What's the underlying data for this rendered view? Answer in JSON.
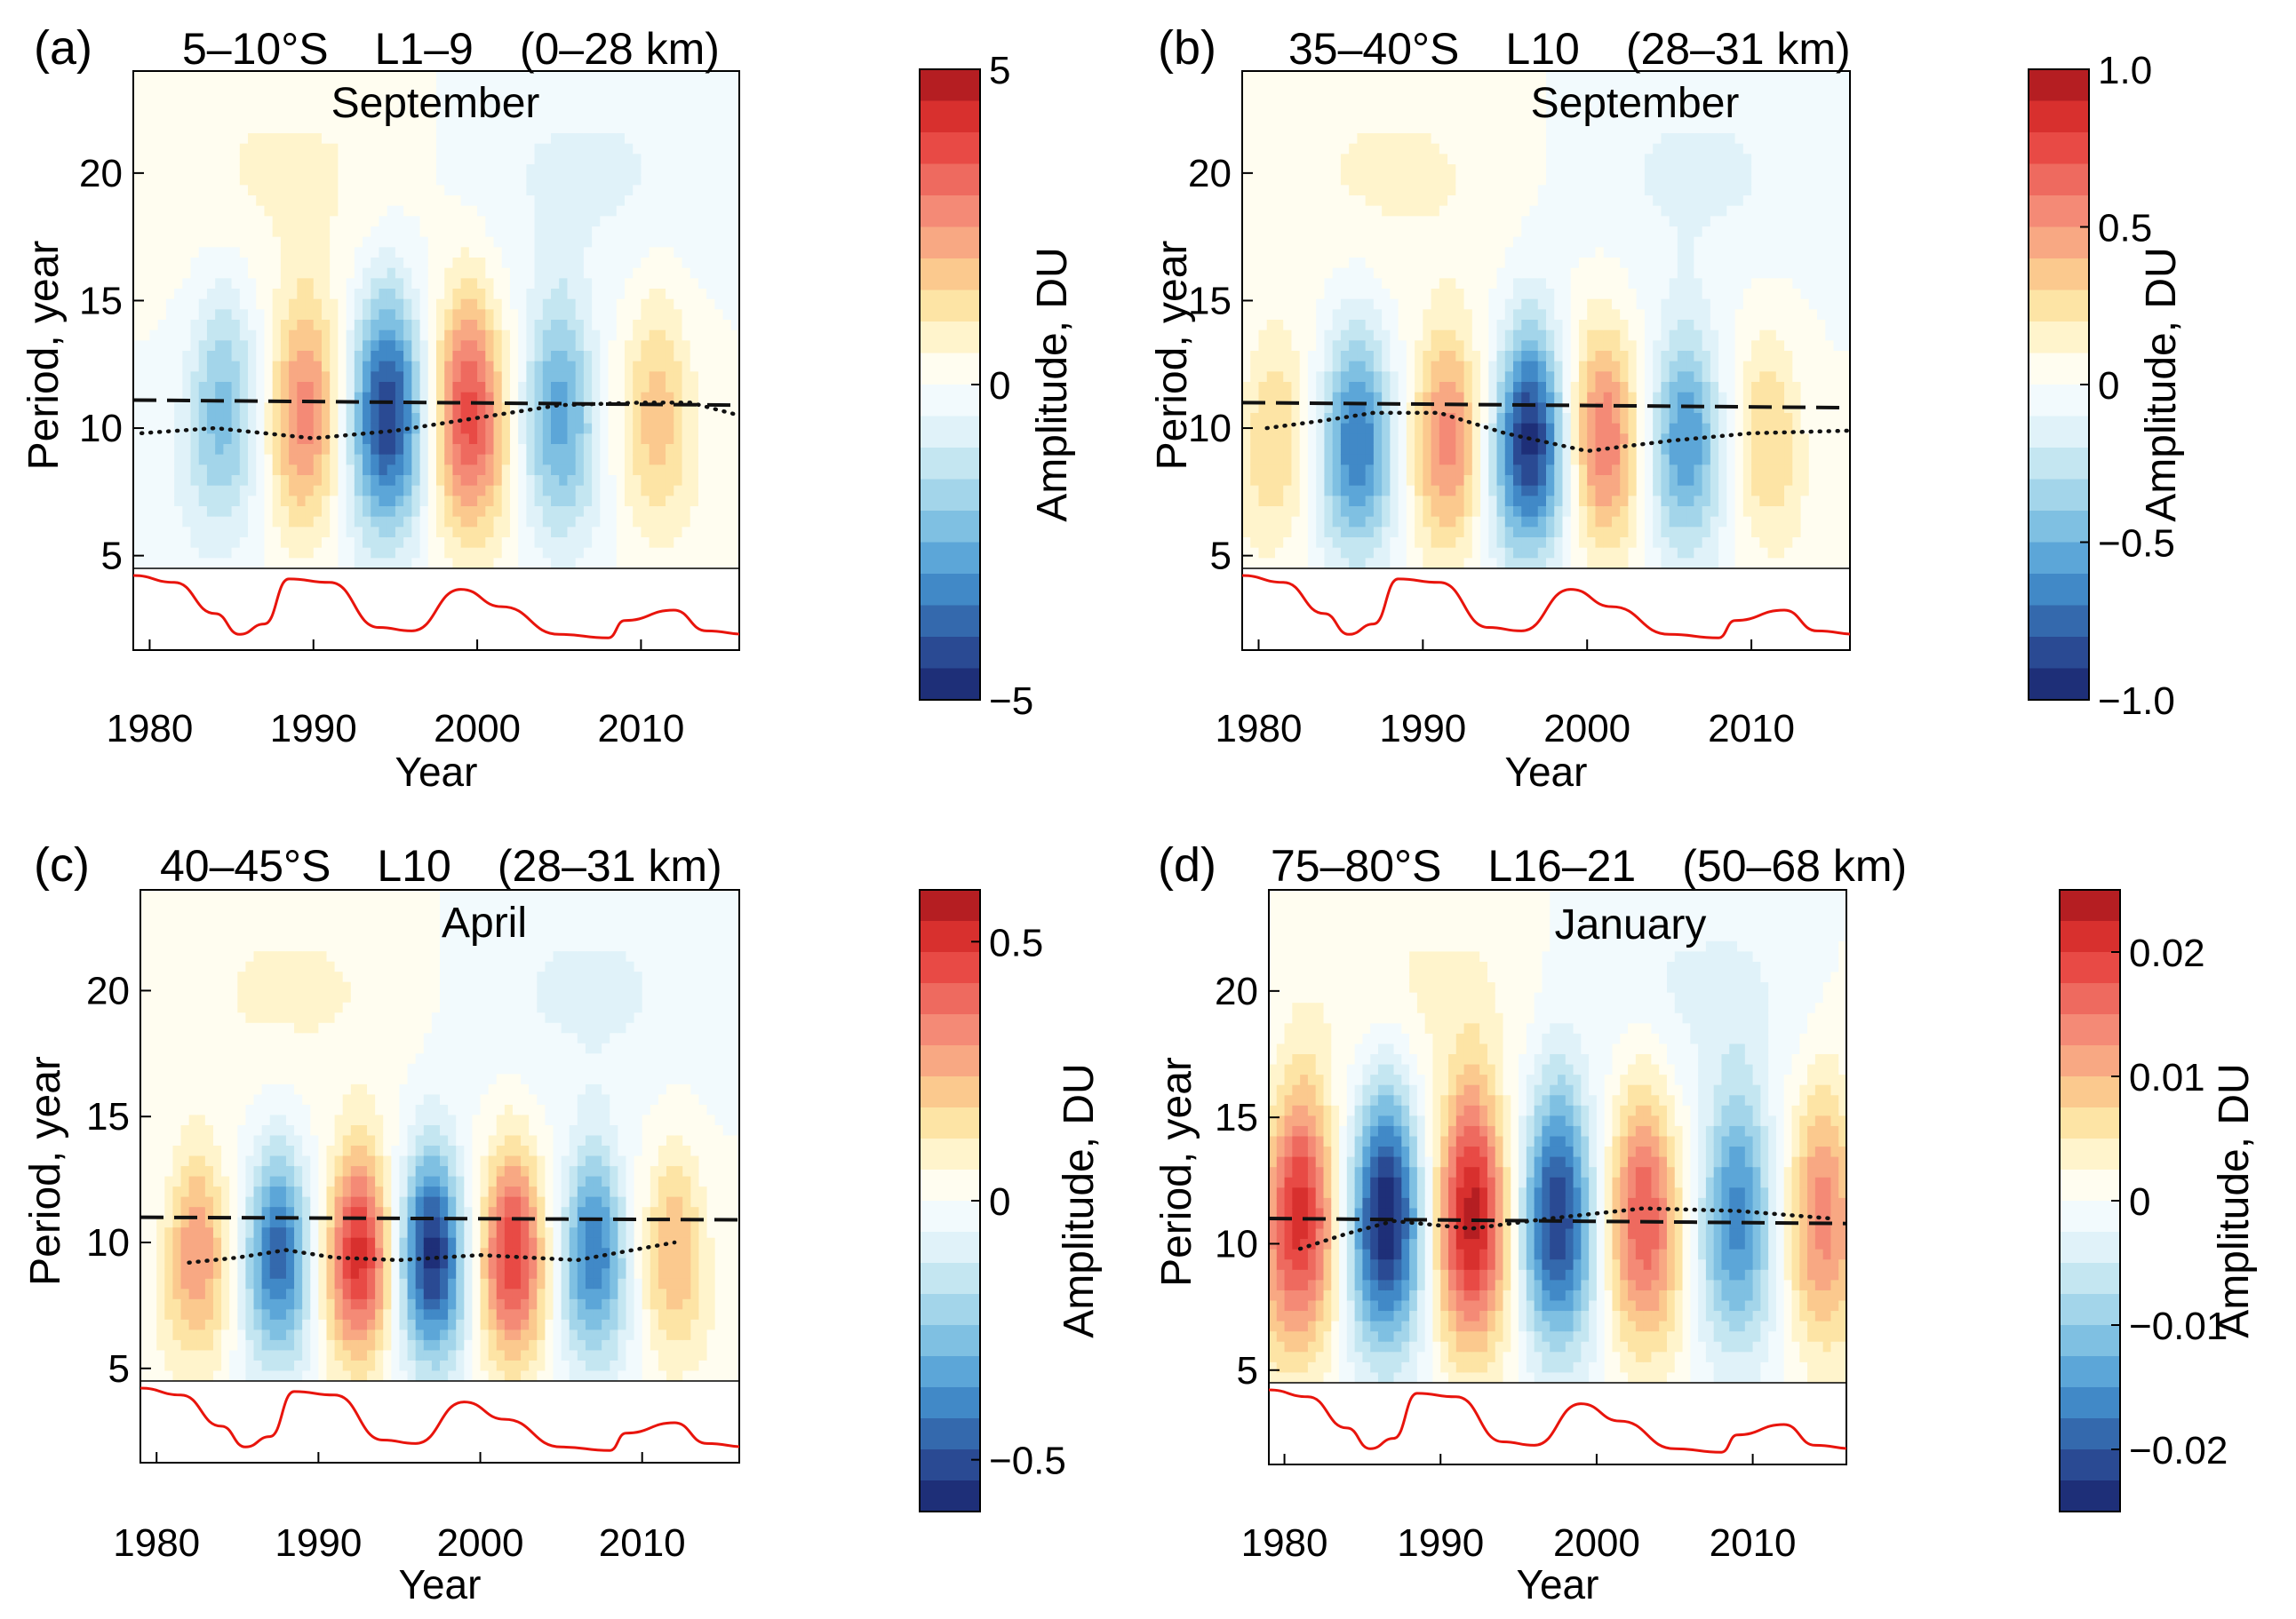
{
  "chart_data": [
    {
      "type": "heatmap",
      "panel_label": "(a)",
      "header": {
        "latitude": "5–10°S",
        "layers": "L1–9",
        "altitude": "(0–28 km)"
      },
      "month": "September",
      "xlabel": "Year",
      "ylabel": "Period, year",
      "colorbar_label": "Amplitude, DU",
      "xlim": [
        1979,
        2016
      ],
      "ylim": [
        4.5,
        24
      ],
      "x_ticks": [
        1980,
        1990,
        2000,
        2010
      ],
      "x_tick_labels": [
        "1980",
        "1990",
        "2000",
        "2010"
      ],
      "y_ticks": [
        5,
        10,
        15,
        20
      ],
      "y_tick_labels": [
        "5",
        "10",
        "15",
        "20"
      ],
      "colorbar_range": [
        -5,
        5
      ],
      "colorbar_ticks": [
        5,
        0,
        -5
      ],
      "colorbar_tick_labels": [
        "5",
        "0",
        "−5"
      ],
      "oscillation": {
        "centers": [
          1984.5,
          1989.5,
          1994.5,
          1999.5,
          2005,
          2011
        ],
        "signs": [
          -1,
          1,
          -1,
          1,
          -1,
          1
        ],
        "strengths": [
          0.45,
          0.55,
          0.9,
          0.75,
          0.55,
          0.35
        ],
        "center_period": 10.5,
        "period_halfwidth": 4.5,
        "year_halfwidth": 2.3
      },
      "dashed_line": {
        "x": [
          1979,
          2016
        ],
        "y": [
          11.1,
          10.9
        ]
      },
      "dotted_line": {
        "x": [
          1979.5,
          1984,
          1990,
          1995,
          2000,
          2005,
          2010,
          2013,
          2016
        ],
        "y": [
          9.8,
          10.0,
          9.6,
          9.9,
          10.4,
          10.9,
          11.0,
          11.0,
          10.5
        ]
      },
      "solar_cycle": {
        "x": [
          1979,
          1981.5,
          1984,
          1985.5,
          1987,
          1988.5,
          1991,
          1994,
          1996,
          1999,
          2001.5,
          2005,
          2008,
          2009,
          2012,
          2014,
          2016.5
        ],
        "y": [
          1.0,
          0.9,
          0.45,
          0.15,
          0.3,
          0.95,
          0.9,
          0.25,
          0.2,
          0.8,
          0.55,
          0.15,
          0.1,
          0.35,
          0.5,
          0.2,
          0.15
        ]
      }
    },
    {
      "type": "heatmap",
      "panel_label": "(b)",
      "header": {
        "latitude": "35–40°S",
        "layers": "L10",
        "altitude": "(28–31 km)"
      },
      "month": "September",
      "xlabel": "Year",
      "ylabel": "Period, year",
      "colorbar_label": "Amplitude, DU",
      "xlim": [
        1979,
        2016
      ],
      "ylim": [
        4.5,
        24
      ],
      "x_ticks": [
        1980,
        1990,
        2000,
        2010
      ],
      "x_tick_labels": [
        "1980",
        "1990",
        "2000",
        "2010"
      ],
      "y_ticks": [
        5,
        10,
        15,
        20
      ],
      "y_tick_labels": [
        "5",
        "10",
        "15",
        "20"
      ],
      "colorbar_range": [
        -1.0,
        1.0
      ],
      "colorbar_ticks": [
        1.0,
        0.5,
        0,
        -0.5,
        -1.0
      ],
      "colorbar_tick_labels": [
        "1.0",
        "0.5",
        "0",
        "−0.5",
        "−1.0"
      ],
      "oscillation": {
        "centers": [
          1981,
          1986,
          1991.5,
          1996.5,
          2001,
          2006,
          2011
        ],
        "signs": [
          1,
          -1,
          1,
          -1,
          1,
          -1,
          1
        ],
        "strengths": [
          0.3,
          0.7,
          0.55,
          0.95,
          0.6,
          0.6,
          0.3
        ],
        "center_period": 9.5,
        "period_halfwidth": 4.2,
        "year_halfwidth": 2.2
      },
      "dashed_line": {
        "x": [
          1979,
          2016
        ],
        "y": [
          11.0,
          10.8
        ]
      },
      "dotted_line": {
        "x": [
          1980.5,
          1984,
          1987,
          1991,
          1995,
          2000,
          2005,
          2010,
          2016
        ],
        "y": [
          10.0,
          10.3,
          10.6,
          10.6,
          9.8,
          9.1,
          9.5,
          9.8,
          9.9
        ]
      },
      "solar_cycle": {
        "x": [
          1979,
          1981.5,
          1984,
          1985.5,
          1987,
          1988.5,
          1991,
          1994,
          1996,
          1999,
          2001.5,
          2005,
          2008,
          2009,
          2012,
          2014,
          2016.5
        ],
        "y": [
          1.0,
          0.9,
          0.45,
          0.15,
          0.3,
          0.95,
          0.9,
          0.25,
          0.2,
          0.8,
          0.55,
          0.15,
          0.1,
          0.35,
          0.5,
          0.2,
          0.15
        ]
      }
    },
    {
      "type": "heatmap",
      "panel_label": "(c)",
      "header": {
        "latitude": "40–45°S",
        "layers": "L10",
        "altitude": "(28–31 km)"
      },
      "month": "April",
      "xlabel": "Year",
      "ylabel": "Period, year",
      "colorbar_label": "Amplitude, DU",
      "xlim": [
        1979,
        2016
      ],
      "ylim": [
        4.5,
        24
      ],
      "x_ticks": [
        1980,
        1990,
        2000,
        2010
      ],
      "x_tick_labels": [
        "1980",
        "1990",
        "2000",
        "2010"
      ],
      "y_ticks": [
        5,
        10,
        15,
        20
      ],
      "y_tick_labels": [
        "5",
        "10",
        "15",
        "20"
      ],
      "colorbar_range": [
        -0.6,
        0.6
      ],
      "colorbar_ticks": [
        0.5,
        0,
        -0.5
      ],
      "colorbar_tick_labels": [
        "0.5",
        "0",
        "−0.5"
      ],
      "oscillation": {
        "centers": [
          1982.5,
          1987.5,
          1992.5,
          1997,
          2002,
          2007,
          2012
        ],
        "signs": [
          1,
          -1,
          1,
          -1,
          1,
          -1,
          1
        ],
        "strengths": [
          0.5,
          0.75,
          0.85,
          0.95,
          0.8,
          0.7,
          0.4
        ],
        "center_period": 9.5,
        "period_halfwidth": 4.0,
        "year_halfwidth": 2.0
      },
      "dashed_line": {
        "x": [
          1979,
          2016
        ],
        "y": [
          11.0,
          10.9
        ]
      },
      "dotted_line": {
        "x": [
          1982,
          1985,
          1988,
          1991,
          1995,
          2000,
          2006,
          2012
        ],
        "y": [
          9.2,
          9.4,
          9.7,
          9.4,
          9.3,
          9.5,
          9.3,
          10.0
        ]
      },
      "solar_cycle": {
        "x": [
          1979,
          1981.5,
          1984,
          1985.5,
          1987,
          1988.5,
          1991,
          1994,
          1996,
          1999,
          2001.5,
          2005,
          2008,
          2009,
          2012,
          2014,
          2016.5
        ],
        "y": [
          1.0,
          0.9,
          0.45,
          0.15,
          0.3,
          0.95,
          0.9,
          0.25,
          0.2,
          0.8,
          0.55,
          0.15,
          0.1,
          0.35,
          0.5,
          0.2,
          0.15
        ]
      }
    },
    {
      "type": "heatmap",
      "panel_label": "(d)",
      "header": {
        "latitude": "75–80°S",
        "layers": "L16–21",
        "altitude": "(50–68 km)"
      },
      "month": "January",
      "xlabel": "Year",
      "ylabel": "Period, year",
      "colorbar_label": "Amplitude, DU",
      "xlim": [
        1979,
        2016
      ],
      "ylim": [
        4.5,
        24
      ],
      "x_ticks": [
        1980,
        1990,
        2000,
        2010
      ],
      "x_tick_labels": [
        "1980",
        "1990",
        "2000",
        "2010"
      ],
      "y_ticks": [
        5,
        10,
        15,
        20
      ],
      "y_tick_labels": [
        "5",
        "10",
        "15",
        "20"
      ],
      "colorbar_range": [
        -0.025,
        0.025
      ],
      "colorbar_ticks": [
        0.02,
        0.01,
        0,
        -0.01,
        -0.02
      ],
      "colorbar_tick_labels": [
        "0.02",
        "0.01",
        "0",
        "−0.01",
        "−0.02"
      ],
      "oscillation": {
        "centers": [
          1981,
          1986.5,
          1992,
          1997.5,
          2003,
          2009,
          2014.5
        ],
        "signs": [
          1,
          -1,
          1,
          -1,
          1,
          -1,
          1
        ],
        "strengths": [
          0.85,
          1.0,
          0.95,
          0.9,
          0.7,
          0.65,
          0.55
        ],
        "center_period": 11.0,
        "period_halfwidth": 5.0,
        "year_halfwidth": 2.4
      },
      "dashed_line": {
        "x": [
          1979,
          2016
        ],
        "y": [
          11.0,
          10.8
        ]
      },
      "dotted_line": {
        "x": [
          1981,
          1984,
          1987,
          1992,
          1997,
          2003,
          2009,
          2015
        ],
        "y": [
          9.8,
          10.4,
          10.9,
          10.6,
          11.0,
          11.4,
          11.3,
          11.0
        ]
      },
      "solar_cycle": {
        "x": [
          1979,
          1981.5,
          1984,
          1985.5,
          1987,
          1988.5,
          1991,
          1994,
          1996,
          1999,
          2001.5,
          2005,
          2008,
          2009,
          2012,
          2014,
          2016.5
        ],
        "y": [
          1.0,
          0.9,
          0.45,
          0.15,
          0.3,
          0.95,
          0.9,
          0.25,
          0.2,
          0.8,
          0.55,
          0.15,
          0.1,
          0.35,
          0.5,
          0.2,
          0.15
        ]
      }
    }
  ]
}
